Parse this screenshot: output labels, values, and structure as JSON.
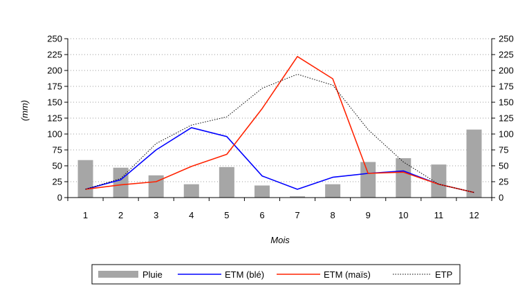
{
  "chart_data": {
    "type": "bar+line",
    "categories": [
      "1",
      "2",
      "3",
      "4",
      "5",
      "6",
      "7",
      "8",
      "9",
      "10",
      "11",
      "12"
    ],
    "xlabel": "Mois",
    "ylabel": "(mm)",
    "ylim": [
      0,
      250
    ],
    "yticks": [
      "0",
      "25",
      "50",
      "75",
      "100",
      "125",
      "150",
      "175",
      "200",
      "225",
      "250"
    ],
    "grid": true,
    "legend_position": "bottom",
    "series": [
      {
        "name": "Pluie",
        "kind": "bar",
        "color": "#a6a6a6",
        "values": [
          59,
          47,
          35,
          21,
          48,
          19,
          2,
          21,
          56,
          62,
          52,
          107
        ]
      },
      {
        "name": "ETM (blé)",
        "kind": "line",
        "color": "#0000ff",
        "values": [
          13,
          28,
          75,
          110,
          96,
          34,
          13,
          32,
          38,
          42,
          21,
          8
        ]
      },
      {
        "name": "ETM (maïs)",
        "kind": "line",
        "color": "#ff2200",
        "values": [
          13,
          20,
          25,
          49,
          68,
          140,
          222,
          187,
          38,
          40,
          21,
          8
        ]
      },
      {
        "name": "ETP",
        "kind": "dotted-line",
        "color": "#000000",
        "values": [
          13,
          30,
          85,
          114,
          127,
          172,
          194,
          177,
          107,
          56,
          21,
          8
        ]
      }
    ]
  }
}
